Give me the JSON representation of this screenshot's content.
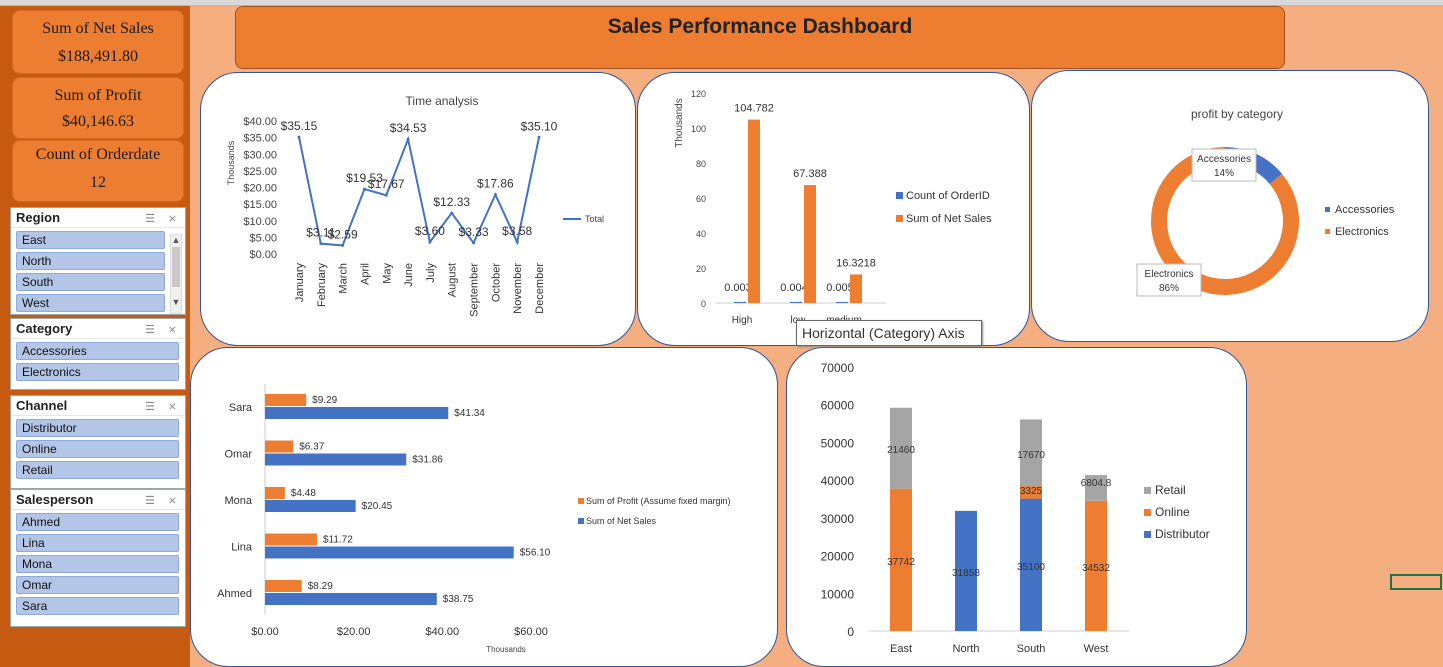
{
  "title": "Sales Performance Dashboard",
  "kpis": [
    {
      "label": "Sum of Net Sales",
      "value": "$188,491.80"
    },
    {
      "label": "Sum of Profit",
      "value": "$40,146.63"
    },
    {
      "label": "Count of Orderdate",
      "value": "12"
    }
  ],
  "slicers": {
    "region": {
      "title": "Region",
      "items": [
        "East",
        "North",
        "South",
        "West"
      ]
    },
    "category": {
      "title": "Category",
      "items": [
        "Accessories",
        "Electronics"
      ]
    },
    "channel": {
      "title": "Channel",
      "items": [
        "Distributor",
        "Online",
        "Retail"
      ]
    },
    "salesperson": {
      "title": "Salesperson",
      "items": [
        "Ahmed",
        "Lina",
        "Mona",
        "Omar",
        "Sara"
      ]
    }
  },
  "tooltip": "Horizontal (Category) Axis",
  "colors": {
    "orange": "#ed7d31",
    "blue": "#4472c4",
    "gray": "#a5a5a5",
    "line": "#4472c4"
  },
  "chart_data": [
    {
      "type": "line",
      "title": "Time analysis",
      "ylabel": "Thousands",
      "legend": "Total",
      "categories": [
        "January",
        "February",
        "March",
        "April",
        "May",
        "June",
        "July",
        "August",
        "September",
        "October",
        "November",
        "December"
      ],
      "values": [
        35.15,
        3.11,
        2.59,
        19.53,
        17.67,
        34.53,
        3.6,
        12.33,
        3.33,
        17.86,
        3.58,
        35.1
      ],
      "labels": [
        "$35.15",
        "$3.11",
        "$2.59",
        "$19.53",
        "$17.67",
        "$34.53",
        "$3.60",
        "$12.33",
        "$3.33",
        "$17.86",
        "$3.58",
        "$35.10"
      ],
      "ticks": [
        "$0.00",
        "$5.00",
        "$10.00",
        "$15.00",
        "$20.00",
        "$25.00",
        "$30.00",
        "$35.00",
        "$40.00"
      ],
      "ylim": [
        0,
        40
      ]
    },
    {
      "type": "bar",
      "ylabel": "Thousands",
      "categories": [
        "High",
        "low",
        "medium"
      ],
      "series": [
        {
          "name": "Count of OrderID",
          "values": [
            0.003,
            0.004,
            0.005
          ],
          "labels": [
            "0.003",
            "0.004",
            "0.005"
          ]
        },
        {
          "name": "Sum of Net Sales",
          "values": [
            104.782,
            67.388,
            16.3218
          ],
          "labels": [
            "104.782",
            "67.388",
            "16.3218"
          ]
        }
      ],
      "ticks": [
        "0",
        "20",
        "40",
        "60",
        "80",
        "100",
        "120"
      ],
      "ylim": [
        0,
        120
      ]
    },
    {
      "type": "pie",
      "title": "profit by category",
      "slices": [
        {
          "name": "Accessories",
          "value": 14,
          "label": "14%"
        },
        {
          "name": "Electronics",
          "value": 86,
          "label": "86%"
        }
      ]
    },
    {
      "type": "bar",
      "orientation": "horizontal",
      "xlabel": "Thousands",
      "categories": [
        "Sara",
        "Omar",
        "Mona",
        "Lina",
        "Ahmed"
      ],
      "series": [
        {
          "name": "Sum of Profit (Assume fixed margin)",
          "values": [
            9.29,
            6.37,
            4.48,
            11.72,
            8.29
          ],
          "labels": [
            "$9.29",
            "$6.37",
            "$4.48",
            "$11.72",
            "$8.29"
          ]
        },
        {
          "name": "Sum of Net Sales",
          "values": [
            41.34,
            31.86,
            20.45,
            56.1,
            38.75
          ],
          "labels": [
            "$41.34",
            "$31.86",
            "$20.45",
            "$56.10",
            "$38.75"
          ]
        }
      ],
      "ticks": [
        "$0.00",
        "$20.00",
        "$40.00",
        "$60.00"
      ],
      "xlim": [
        0,
        60
      ]
    },
    {
      "type": "bar",
      "stacked": true,
      "categories": [
        "East",
        "North",
        "South",
        "West"
      ],
      "series": [
        {
          "name": "Distributor",
          "values": [
            0,
            31858,
            35100,
            0
          ],
          "labels": [
            "",
            "31858",
            "35100",
            ""
          ]
        },
        {
          "name": "Online",
          "values": [
            37742,
            0,
            3325,
            34532
          ],
          "labels": [
            "37742",
            "",
            "3325",
            "34532"
          ]
        },
        {
          "name": "Retail",
          "values": [
            21460,
            0,
            17670,
            6804.8
          ],
          "labels": [
            "21460",
            "",
            "17670",
            "6804.8"
          ]
        }
      ],
      "ticks": [
        "0",
        "10000",
        "20000",
        "30000",
        "40000",
        "50000",
        "60000",
        "70000"
      ],
      "ylim": [
        0,
        70000
      ]
    }
  ]
}
